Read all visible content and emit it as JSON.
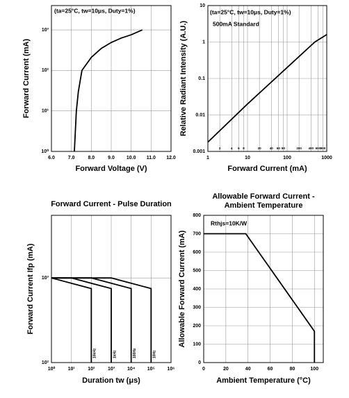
{
  "chart_data": [
    {
      "type": "line",
      "xlabel": "Forward Voltage (V)",
      "ylabel": "Forward Current (mA)",
      "annotations": [
        "(ta=25°C, tw=10μs, Duty=1%)"
      ],
      "x": [
        7.15,
        7.25,
        7.35,
        7.53,
        8.0,
        8.5,
        9.0,
        9.5,
        10.0,
        10.56
      ],
      "series": [
        {
          "color": "#000000",
          "values": [
            1,
            10,
            30,
            100,
            210,
            350,
            490,
            630,
            760,
            1000
          ]
        }
      ],
      "xlim": [
        6,
        12
      ],
      "xticks": [
        {
          "value": 6,
          "label": "6.0"
        },
        {
          "value": 7,
          "label": "7.0"
        },
        {
          "value": 8,
          "label": "8.0"
        },
        {
          "value": 9,
          "label": "9.0"
        },
        {
          "value": 10,
          "label": "10.0"
        },
        {
          "value": 11,
          "label": "11.0"
        },
        {
          "value": 12,
          "label": "12.0"
        }
      ],
      "ylim": [
        1,
        4000
      ],
      "ylog": true,
      "yticks": [
        {
          "value": 1,
          "label": "10⁰"
        },
        {
          "value": 10,
          "label": "10¹"
        },
        {
          "value": 100,
          "label": "10²"
        },
        {
          "value": 1000,
          "label": "10³"
        }
      ],
      "grid": true
    },
    {
      "type": "line",
      "xlabel": "Forward Current (mA)",
      "ylabel": "Relative Radiant Intensity (A.U.)",
      "annotations": [
        "(ta=25°C, tw=10μs, Duty=1%)",
        "500mA Standard"
      ],
      "x": [
        1,
        10,
        100,
        500,
        1000
      ],
      "series": [
        {
          "color": "#000000",
          "values": [
            0.0018,
            0.02,
            0.2,
            1,
            1.6
          ]
        }
      ],
      "xlim": [
        1,
        1000
      ],
      "xlog": true,
      "xticks": [
        1,
        2,
        4,
        6,
        8,
        10,
        20,
        40,
        60,
        80,
        100,
        200,
        400,
        600,
        800,
        1000
      ],
      "ylim": [
        0.001,
        10
      ],
      "ylog": true,
      "yticks": [
        0.001,
        0.01,
        0.1,
        1,
        10
      ],
      "grid": true
    },
    {
      "type": "line",
      "title": "Forward Current - Pulse Duration",
      "xlabel": "Duration tw (μs)",
      "ylabel": "Forward Current Ifp (mA)",
      "series": [
        {
          "name": "10kHz",
          "color": "#000000",
          "x": [
            1,
            100,
            100
          ],
          "values": [
            1000,
            750,
            100
          ]
        },
        {
          "name": "1kHz",
          "color": "#000000",
          "x": [
            1,
            10,
            1000,
            1000
          ],
          "values": [
            1000,
            1000,
            750,
            100
          ]
        },
        {
          "name": "100Hz",
          "color": "#000000",
          "x": [
            1,
            100,
            10000,
            10000
          ],
          "values": [
            1000,
            1000,
            750,
            100
          ]
        },
        {
          "name": "10Hz",
          "color": "#000000",
          "x": [
            1,
            1000,
            100000,
            100000
          ],
          "values": [
            1000,
            1000,
            750,
            100
          ]
        }
      ],
      "xlim": [
        1,
        1000000
      ],
      "xlog": true,
      "xticks": [
        {
          "value": 1,
          "label": "10⁰"
        },
        {
          "value": 10,
          "label": "10¹"
        },
        {
          "value": 100,
          "label": "10²"
        },
        {
          "value": 1000,
          "label": "10³"
        },
        {
          "value": 10000,
          "label": "10⁴"
        },
        {
          "value": 100000,
          "label": "10⁵"
        },
        {
          "value": 1000000,
          "label": "10⁶"
        }
      ],
      "ylim": [
        100,
        5500
      ],
      "ylog": true,
      "yticks": [
        {
          "value": 100,
          "label": "10²"
        },
        {
          "value": 1000,
          "label": "10³"
        }
      ],
      "grid": true
    },
    {
      "type": "line",
      "title": "Allowable Forward Current - Ambient Temperature",
      "xlabel": "Ambient Temperature (°C)",
      "ylabel": "Allowable Forward Current (mA)",
      "annotations": [
        "Rthjs=10K/W"
      ],
      "x": [
        0,
        38,
        100,
        100
      ],
      "series": [
        {
          "color": "#000000",
          "values": [
            700,
            700,
            170,
            0
          ]
        }
      ],
      "xlim": [
        0,
        108
      ],
      "xticks": [
        0,
        20,
        40,
        60,
        80,
        100
      ],
      "ylim": [
        0,
        800
      ],
      "yticks": [
        0,
        100,
        200,
        300,
        400,
        500,
        600,
        700,
        800
      ],
      "grid": true
    }
  ]
}
